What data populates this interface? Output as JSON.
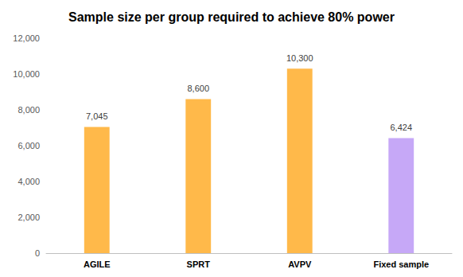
{
  "chart_data": {
    "type": "bar",
    "title": "Sample size per group required to achieve 80% power",
    "categories": [
      "AGILE",
      "SPRT",
      "AVPV",
      "Fixed sample"
    ],
    "values": [
      7045,
      8600,
      10300,
      6424
    ],
    "value_labels": [
      "7,045",
      "8,600",
      "10,300",
      "6,424"
    ],
    "colors": [
      "#ffb94a",
      "#ffb94a",
      "#ffb94a",
      "#c6a8f7"
    ],
    "ylim": [
      0,
      12000
    ],
    "yticks": [
      0,
      {
        "value": 2000,
        "label": "2,000"
      },
      {
        "value": 4000,
        "label": "4,000"
      },
      {
        "value": 6000,
        "label": "6,000"
      },
      {
        "value": 8000,
        "label": "8,000"
      },
      {
        "value": 10000,
        "label": "10,000"
      },
      {
        "value": 12000,
        "label": "12,000"
      }
    ],
    "grid": false,
    "data_labels": true
  }
}
